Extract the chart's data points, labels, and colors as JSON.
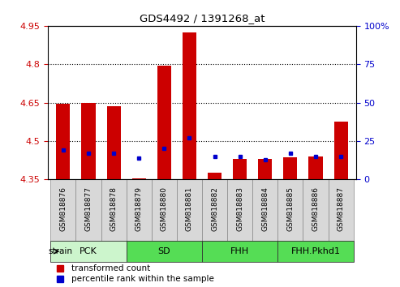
{
  "title": "GDS4492 / 1391268_at",
  "samples": [
    "GSM818876",
    "GSM818877",
    "GSM818878",
    "GSM818879",
    "GSM818880",
    "GSM818881",
    "GSM818882",
    "GSM818883",
    "GSM818884",
    "GSM818885",
    "GSM818886",
    "GSM818887"
  ],
  "red_values": [
    4.645,
    4.648,
    4.635,
    4.355,
    4.795,
    4.925,
    4.375,
    4.43,
    4.43,
    4.435,
    4.44,
    4.575
  ],
  "blue_percentiles": [
    19,
    17,
    17,
    14,
    20,
    27,
    15,
    15,
    13,
    17,
    15,
    15
  ],
  "ylim_left": [
    4.35,
    4.95
  ],
  "ylim_right": [
    0,
    100
  ],
  "right_ticks": [
    0,
    25,
    50,
    75,
    100
  ],
  "right_tick_labels": [
    "0",
    "25",
    "50",
    "75",
    "100%"
  ],
  "left_ticks": [
    4.35,
    4.5,
    4.65,
    4.8,
    4.95
  ],
  "left_tick_labels": [
    "4.35",
    "4.5",
    "4.65",
    "4.8",
    "4.95"
  ],
  "hlines": [
    4.5,
    4.65,
    4.8
  ],
  "group_defs": [
    {
      "label": "PCK",
      "start": 0,
      "end": 2,
      "color": "#ccf5cc"
    },
    {
      "label": "SD",
      "start": 3,
      "end": 5,
      "color": "#55dd55"
    },
    {
      "label": "FHH",
      "start": 6,
      "end": 8,
      "color": "#55dd55"
    },
    {
      "label": "FHH.Pkhd1",
      "start": 9,
      "end": 11,
      "color": "#55dd55"
    }
  ],
  "red_color": "#cc0000",
  "blue_color": "#0000cc",
  "base_value": 4.35,
  "legend_labels": [
    "transformed count",
    "percentile rank within the sample"
  ],
  "strain_label": "strain"
}
